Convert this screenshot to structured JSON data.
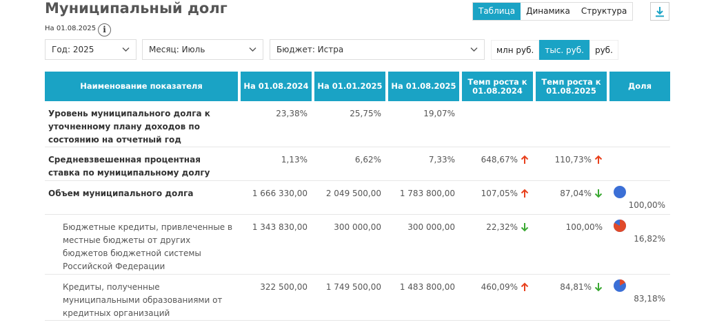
{
  "page": {
    "title": "Муниципальный долг",
    "as_of": "На 01.08.2025",
    "info_icon": "info-icon"
  },
  "view_tabs": [
    {
      "label": "Таблица",
      "active": true
    },
    {
      "label": "Динамика",
      "active": false
    },
    {
      "label": "Структура",
      "active": false
    }
  ],
  "filters": {
    "year": "Год: 2025",
    "month": "Месяц: Июль",
    "budget": "Бюджет: Истра"
  },
  "unit_tabs": [
    {
      "label": "млн руб.",
      "active": false
    },
    {
      "label": "тыс. руб.",
      "active": true
    },
    {
      "label": "руб.",
      "active": false
    }
  ],
  "table": {
    "headers": [
      "Наименование показателя",
      "На 01.08.2024",
      "На 01.01.2025",
      "На 01.08.2025",
      "Темп роста к 01.08.2024",
      "Темп роста к 01.08.2025",
      "Доля"
    ],
    "rows": [
      {
        "name": "Уровень муниципального долга к уточненному плану доходов по состоянию на отчетный год",
        "bold": true,
        "sub": false,
        "v1": "23,38%",
        "v2": "25,75%",
        "v3": "19,07%",
        "r1": "",
        "r1_dir": "",
        "r2": "",
        "r2_dir": "",
        "share": "",
        "share_fraction": null
      },
      {
        "name": "Средневзвешенная процентная ставка по муниципальному долгу",
        "bold": true,
        "sub": false,
        "v1": "1,13%",
        "v2": "6,62%",
        "v3": "7,33%",
        "r1": "648,67%",
        "r1_dir": "up",
        "r2": "110,73%",
        "r2_dir": "up",
        "share": "",
        "share_fraction": null
      },
      {
        "name": "Объем муниципального долга",
        "bold": true,
        "sub": false,
        "v1": "1 666 330,00",
        "v2": "2 049 500,00",
        "v3": "1 783 800,00",
        "r1": "107,05%",
        "r1_dir": "up",
        "r2": "87,04%",
        "r2_dir": "down",
        "share": "100,00%",
        "share_fraction": 1.0
      },
      {
        "name": "Бюджетные кредиты, привлеченные в местные бюджеты от других бюджетов бюджетной системы Российской Федерации",
        "bold": false,
        "sub": true,
        "v1": "1 343 830,00",
        "v2": "300 000,00",
        "v3": "300 000,00",
        "r1": "22,32%",
        "r1_dir": "down",
        "r2": "100,00%",
        "r2_dir": "",
        "share": "16,82%",
        "share_fraction": 0.1682
      },
      {
        "name": "Кредиты, полученные муниципальными образованиями от кредитных организаций",
        "bold": false,
        "sub": true,
        "v1": "322 500,00",
        "v2": "1 749 500,00",
        "v3": "1 483 800,00",
        "r1": "460,09%",
        "r1_dir": "up",
        "r2": "84,81%",
        "r2_dir": "down",
        "share": "83,18%",
        "share_fraction": 0.8318
      }
    ]
  },
  "colors": {
    "accent": "#1aa3c5",
    "arrow_up": "#e8401c",
    "arrow_down": "#3aa832",
    "pie_blue": "#3b6fd6",
    "pie_red": "#e04a2a"
  }
}
